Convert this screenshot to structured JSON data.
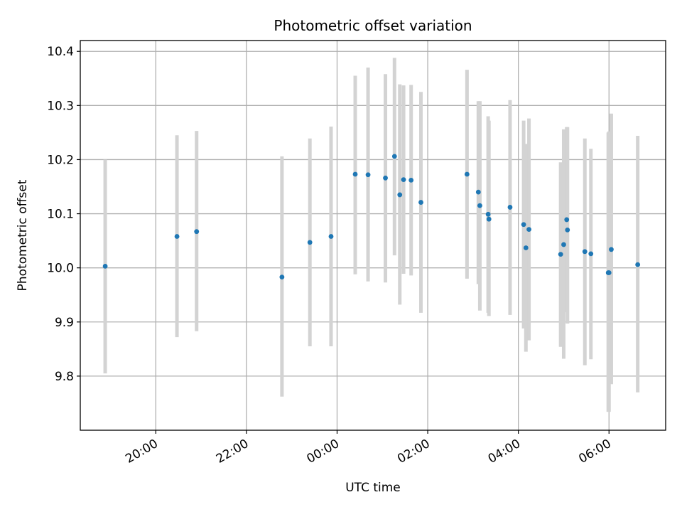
{
  "chart_data": {
    "type": "scatter",
    "title": "Photometric offset variation",
    "xlabel": "UTC time",
    "ylabel": "Photometric offset",
    "x_axis_type": "time",
    "xlim": [
      "18:20",
      "07:15"
    ],
    "ylim": [
      9.7,
      10.42
    ],
    "grid": true,
    "x_ticks": [
      "20:00",
      "22:00",
      "00:00",
      "02:00",
      "04:00",
      "06:00"
    ],
    "y_ticks": [
      "9.8",
      "9.9",
      "10.0",
      "10.1",
      "10.2",
      "10.3",
      "10.4"
    ],
    "point_color": "#1f77b4",
    "errorbar_color": "#d3d3d3",
    "series": [
      {
        "points": [
          {
            "x": "18:53",
            "y": 10.003,
            "low": 9.805,
            "high": 10.2
          },
          {
            "x": "20:28",
            "y": 10.058,
            "low": 9.872,
            "high": 10.245
          },
          {
            "x": "20:54",
            "y": 10.067,
            "low": 9.883,
            "high": 10.253
          },
          {
            "x": "22:47",
            "y": 9.983,
            "low": 9.762,
            "high": 10.206
          },
          {
            "x": "23:24",
            "y": 10.047,
            "low": 9.855,
            "high": 10.239
          },
          {
            "x": "23:52",
            "y": 10.058,
            "low": 9.855,
            "high": 10.261
          },
          {
            "x": "00:24",
            "y": 10.173,
            "low": 9.988,
            "high": 10.355
          },
          {
            "x": "00:41",
            "y": 10.172,
            "low": 9.975,
            "high": 10.37
          },
          {
            "x": "01:04",
            "y": 10.166,
            "low": 9.973,
            "high": 10.358
          },
          {
            "x": "01:16",
            "y": 10.206,
            "low": 10.023,
            "high": 10.388
          },
          {
            "x": "01:23",
            "y": 10.135,
            "low": 9.932,
            "high": 10.339
          },
          {
            "x": "01:28",
            "y": 10.163,
            "low": 9.989,
            "high": 10.337
          },
          {
            "x": "01:38",
            "y": 10.162,
            "low": 9.986,
            "high": 10.338
          },
          {
            "x": "01:51",
            "y": 10.121,
            "low": 9.917,
            "high": 10.325
          },
          {
            "x": "02:52",
            "y": 10.173,
            "low": 9.98,
            "high": 10.366
          },
          {
            "x": "03:07",
            "y": 10.14,
            "low": 9.97,
            "high": 10.308
          },
          {
            "x": "03:09",
            "y": 10.115,
            "low": 9.921,
            "high": 10.308
          },
          {
            "x": "03:20",
            "y": 10.099,
            "low": 9.917,
            "high": 10.28
          },
          {
            "x": "03:21",
            "y": 10.09,
            "low": 9.911,
            "high": 10.272
          },
          {
            "x": "03:49",
            "y": 10.112,
            "low": 9.913,
            "high": 10.31
          },
          {
            "x": "04:07",
            "y": 10.08,
            "low": 9.888,
            "high": 10.272
          },
          {
            "x": "04:10",
            "y": 10.037,
            "low": 9.845,
            "high": 10.229
          },
          {
            "x": "04:14",
            "y": 10.071,
            "low": 9.866,
            "high": 10.276
          },
          {
            "x": "04:56",
            "y": 10.025,
            "low": 9.854,
            "high": 10.195
          },
          {
            "x": "05:00",
            "y": 10.043,
            "low": 9.832,
            "high": 10.256
          },
          {
            "x": "05:04",
            "y": 10.089,
            "low": 9.918,
            "high": 10.26
          },
          {
            "x": "05:05",
            "y": 10.07,
            "low": 9.897,
            "high": 10.26
          },
          {
            "x": "05:28",
            "y": 10.03,
            "low": 9.82,
            "high": 10.239
          },
          {
            "x": "05:36",
            "y": 10.026,
            "low": 9.831,
            "high": 10.22
          },
          {
            "x": "05:59",
            "y": 9.991,
            "low": 9.734,
            "high": 10.25
          },
          {
            "x": "06:00",
            "y": 9.991,
            "low": 9.734,
            "high": 10.252
          },
          {
            "x": "06:03",
            "y": 10.034,
            "low": 9.785,
            "high": 10.285
          },
          {
            "x": "06:38",
            "y": 10.006,
            "low": 9.77,
            "high": 10.244
          }
        ]
      }
    ]
  }
}
